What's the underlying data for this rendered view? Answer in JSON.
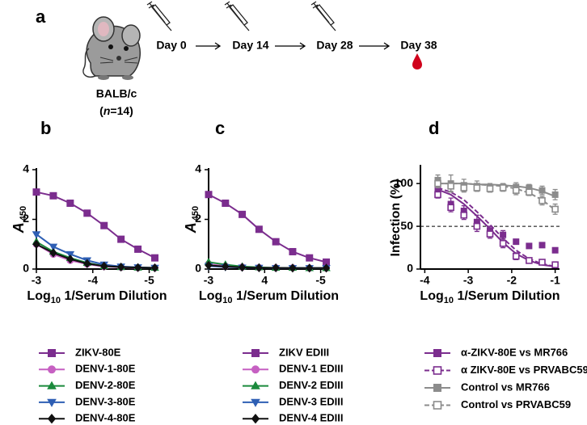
{
  "panel_a": {
    "label": "a",
    "strain": "BALB/c",
    "cohort": {
      "open": "(",
      "var": "n",
      "rest": "=14)"
    },
    "days": [
      "Day 0",
      "Day 14",
      "Day 28",
      "Day 38"
    ]
  },
  "chart_data": [
    {
      "type": "line",
      "panel": "b",
      "y_label": "A",
      "y_label_sub": "450",
      "x_label": "Log",
      "x_label_sub": "10",
      "x_label_rest": " 1/Serum Dilution",
      "x": [
        -3,
        -3.3,
        -3.6,
        -3.9,
        -4.2,
        -4.5,
        -4.8,
        -5.1
      ],
      "xlim": [
        -3,
        -5.15
      ],
      "xticks": [
        -3,
        -4,
        -5
      ],
      "ylim": [
        0,
        4
      ],
      "yticks": [
        0,
        2,
        4
      ],
      "legend": "below",
      "series": [
        {
          "name": "ZIKV-80E",
          "color": "#7b2d8e",
          "marker": "square",
          "values": [
            3.1,
            2.95,
            2.65,
            2.25,
            1.75,
            1.2,
            0.8,
            0.45
          ]
        },
        {
          "name": "DENV-1-80E",
          "color": "#c660c2",
          "marker": "circle",
          "values": [
            1.0,
            0.6,
            0.35,
            0.2,
            0.1,
            0.07,
            0.05,
            0.05
          ]
        },
        {
          "name": "DENV-2-80E",
          "color": "#1b8a3c",
          "marker": "triangle-up",
          "values": [
            1.1,
            0.7,
            0.45,
            0.25,
            0.12,
            0.08,
            0.06,
            0.05
          ]
        },
        {
          "name": "DENV-3-80E",
          "color": "#2e5fb4",
          "marker": "triangle-down",
          "values": [
            1.4,
            0.9,
            0.6,
            0.35,
            0.18,
            0.1,
            0.07,
            0.05
          ]
        },
        {
          "name": "DENV-4-80E",
          "color": "#111111",
          "marker": "diamond",
          "values": [
            1.0,
            0.65,
            0.4,
            0.22,
            0.12,
            0.08,
            0.06,
            0.05
          ]
        }
      ]
    },
    {
      "type": "line",
      "panel": "c",
      "y_label": "A",
      "y_label_sub": "450",
      "x_label": "Log",
      "x_label_sub": "10",
      "x_label_rest": " 1/Serum Dilution",
      "x": [
        -3,
        -3.3,
        -3.6,
        -3.9,
        -4.2,
        -4.5,
        -4.8,
        -5.1
      ],
      "xlim": [
        -3,
        -5.15
      ],
      "xticks": [
        -3,
        {
          "value": -4,
          "label": "4"
        },
        -5
      ],
      "ylim": [
        0,
        4
      ],
      "yticks": [
        0,
        2,
        4
      ],
      "legend": "below",
      "series": [
        {
          "name": "ZIKV EDIII",
          "color": "#7b2d8e",
          "marker": "square",
          "values": [
            3.0,
            2.65,
            2.2,
            1.6,
            1.1,
            0.7,
            0.45,
            0.28
          ]
        },
        {
          "name": "DENV-1 EDIII",
          "color": "#c660c2",
          "marker": "circle",
          "values": [
            0.2,
            0.12,
            0.08,
            0.06,
            0.05,
            0.05,
            0.04,
            0.04
          ]
        },
        {
          "name": "DENV-2 EDIII",
          "color": "#1b8a3c",
          "marker": "triangle-up",
          "values": [
            0.28,
            0.18,
            0.1,
            0.07,
            0.05,
            0.05,
            0.04,
            0.04
          ]
        },
        {
          "name": "DENV-3 EDIII",
          "color": "#2e5fb4",
          "marker": "triangle-down",
          "values": [
            0.12,
            0.08,
            0.06,
            0.05,
            0.04,
            0.04,
            0.04,
            0.04
          ]
        },
        {
          "name": "DENV-4 EDIII",
          "color": "#111111",
          "marker": "diamond",
          "values": [
            0.15,
            0.1,
            0.07,
            0.05,
            0.05,
            0.04,
            0.04,
            0.04
          ]
        }
      ]
    },
    {
      "type": "scatter",
      "panel": "d",
      "y_label": "Infection (%)",
      "x_label": "Log",
      "x_label_sub": "10",
      "x_label_rest": " 1/Serum Dilution",
      "x": [
        -3.7,
        -3.4,
        -3.1,
        -2.8,
        -2.5,
        -2.2,
        -1.9,
        -1.6,
        -1.3,
        -1.0
      ],
      "xlim": [
        -4.1,
        -0.9
      ],
      "xticks": [
        -4,
        -3,
        -2,
        -1
      ],
      "ylim": [
        0,
        120
      ],
      "yticks": [
        0,
        50,
        100
      ],
      "ref_line": 50,
      "legend": "below",
      "series": [
        {
          "name": "α-ZIKV-80E vs MR766",
          "color": "#7b2d8e",
          "marker": "square",
          "open": false,
          "dash": false,
          "values": [
            92,
            76,
            68,
            55,
            45,
            40,
            32,
            27,
            28,
            22
          ],
          "errors": [
            5,
            7,
            6,
            8,
            5,
            5,
            0,
            0,
            0,
            0
          ],
          "fit": [
            93,
            87,
            76,
            62,
            47,
            31,
            18,
            10,
            5,
            3
          ]
        },
        {
          "name": "α ZIKV-80E vs PRVABC59",
          "color": "#7b2d8e",
          "marker": "square",
          "open": true,
          "dash": true,
          "values": [
            87,
            72,
            63,
            50,
            41,
            30,
            15,
            10,
            8,
            5
          ],
          "errors": [
            4,
            5,
            5,
            6,
            5,
            5,
            4,
            0,
            3,
            3
          ],
          "fit": [
            95,
            90,
            81,
            67,
            52,
            36,
            22,
            12,
            6,
            3
          ]
        },
        {
          "name": "Control vs MR766",
          "color": "#8c8c8c",
          "marker": "square",
          "open": false,
          "dash": false,
          "values": [
            104,
            100,
            98,
            97,
            95,
            96,
            96,
            95,
            92,
            87
          ],
          "errors": [
            6,
            10,
            7,
            6,
            5,
            4,
            5,
            4,
            5,
            6
          ],
          "fit": [
            100,
            100,
            100,
            99,
            99,
            98,
            97,
            95,
            91,
            85
          ]
        },
        {
          "name": "Control vs PRVABC59",
          "color": "#8c8c8c",
          "marker": "square",
          "open": true,
          "dash": true,
          "values": [
            100,
            97,
            95,
            95,
            94,
            95,
            92,
            90,
            80,
            70
          ],
          "errors": [
            5,
            6,
            5,
            4,
            4,
            4,
            5,
            4,
            5,
            6
          ],
          "fit": [
            100,
            100,
            100,
            99,
            98,
            97,
            94,
            89,
            81,
            69
          ]
        }
      ]
    }
  ]
}
